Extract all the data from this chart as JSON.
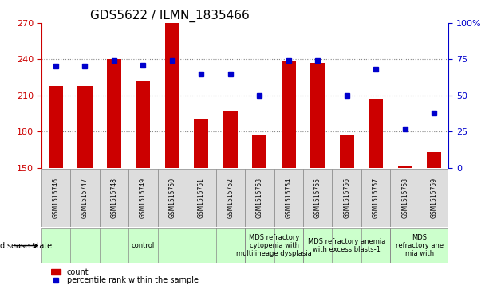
{
  "title": "GDS5622 / ILMN_1835466",
  "samples": [
    "GSM1515746",
    "GSM1515747",
    "GSM1515748",
    "GSM1515749",
    "GSM1515750",
    "GSM1515751",
    "GSM1515752",
    "GSM1515753",
    "GSM1515754",
    "GSM1515755",
    "GSM1515756",
    "GSM1515757",
    "GSM1515758",
    "GSM1515759"
  ],
  "counts": [
    218,
    218,
    240,
    222,
    270,
    190,
    197,
    177,
    238,
    237,
    177,
    207,
    152,
    163
  ],
  "percentiles": [
    70,
    70,
    74,
    71,
    74,
    65,
    65,
    50,
    74,
    74,
    50,
    68,
    27,
    38
  ],
  "ylim_left": [
    150,
    270
  ],
  "ylim_right": [
    0,
    100
  ],
  "yticks_left": [
    150,
    180,
    210,
    240,
    270
  ],
  "yticks_right": [
    0,
    25,
    50,
    75,
    100
  ],
  "bar_color": "#cc0000",
  "dot_color": "#0000cc",
  "disease_groups": [
    {
      "label": "control",
      "start": 0,
      "end": 7,
      "color": "#ccffcc"
    },
    {
      "label": "MDS refractory\ncytopenia with\nmultilineage dysplasia",
      "start": 7,
      "end": 9,
      "color": "#ccffcc"
    },
    {
      "label": "MDS refractory anemia\nwith excess blasts-1",
      "start": 9,
      "end": 12,
      "color": "#ccffcc"
    },
    {
      "label": "MDS\nrefractory ane\nmia with",
      "start": 12,
      "end": 14,
      "color": "#ccffcc"
    }
  ],
  "disease_state_label": "disease state",
  "legend_count_label": "count",
  "legend_pct_label": "percentile rank within the sample",
  "grid_color": "#888888",
  "background_color": "#ffffff",
  "tick_label_color_left": "#cc0000",
  "tick_label_color_right": "#0000cc",
  "bar_width": 0.5,
  "title_fontsize": 11,
  "axis_fontsize": 8,
  "sample_fontsize": 5.5,
  "disease_fontsize": 6,
  "legend_fontsize": 7
}
